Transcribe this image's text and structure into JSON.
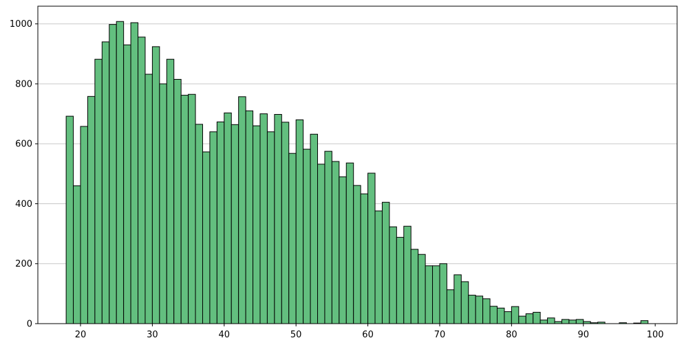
{
  "chart_data": {
    "type": "histogram",
    "bins": [
      18,
      19,
      20,
      21,
      22,
      23,
      24,
      25,
      26,
      27,
      28,
      29,
      30,
      31,
      32,
      33,
      34,
      35,
      36,
      37,
      38,
      39,
      40,
      41,
      42,
      43,
      44,
      45,
      46,
      47,
      48,
      49,
      50,
      51,
      52,
      53,
      54,
      55,
      56,
      57,
      58,
      59,
      60,
      61,
      62,
      63,
      64,
      65,
      66,
      67,
      68,
      69,
      70,
      71,
      72,
      73,
      74,
      75,
      76,
      77,
      78,
      79,
      80,
      81,
      82,
      83,
      84,
      85,
      86,
      87,
      88,
      89,
      90,
      91,
      92,
      93,
      94,
      95,
      96,
      97,
      98,
      99
    ],
    "values": [
      692,
      460,
      658,
      758,
      882,
      940,
      998,
      1008,
      930,
      1004,
      956,
      832,
      924,
      800,
      882,
      815,
      762,
      765,
      665,
      573,
      640,
      673,
      703,
      664,
      757,
      710,
      660,
      700,
      640,
      698,
      672,
      568,
      680,
      582,
      632,
      532,
      575,
      541,
      490,
      536,
      461,
      433,
      502,
      376,
      405,
      323,
      288,
      325,
      248,
      231,
      193,
      193,
      200,
      113,
      163,
      140,
      95,
      92,
      83,
      58,
      52,
      40,
      57,
      25,
      33,
      38,
      12,
      19,
      7,
      14,
      12,
      14,
      7,
      3,
      5,
      0,
      0,
      3,
      0,
      2,
      10
    ],
    "color": "#63bf7f",
    "xlim": [
      14.06,
      103.05
    ],
    "xticks": [
      20,
      30,
      40,
      50,
      60,
      70,
      80,
      90,
      100
    ],
    "ylim": [
      0,
      1059
    ],
    "yticks": [
      0,
      200,
      400,
      600,
      800,
      1000
    ],
    "grid": "y"
  }
}
